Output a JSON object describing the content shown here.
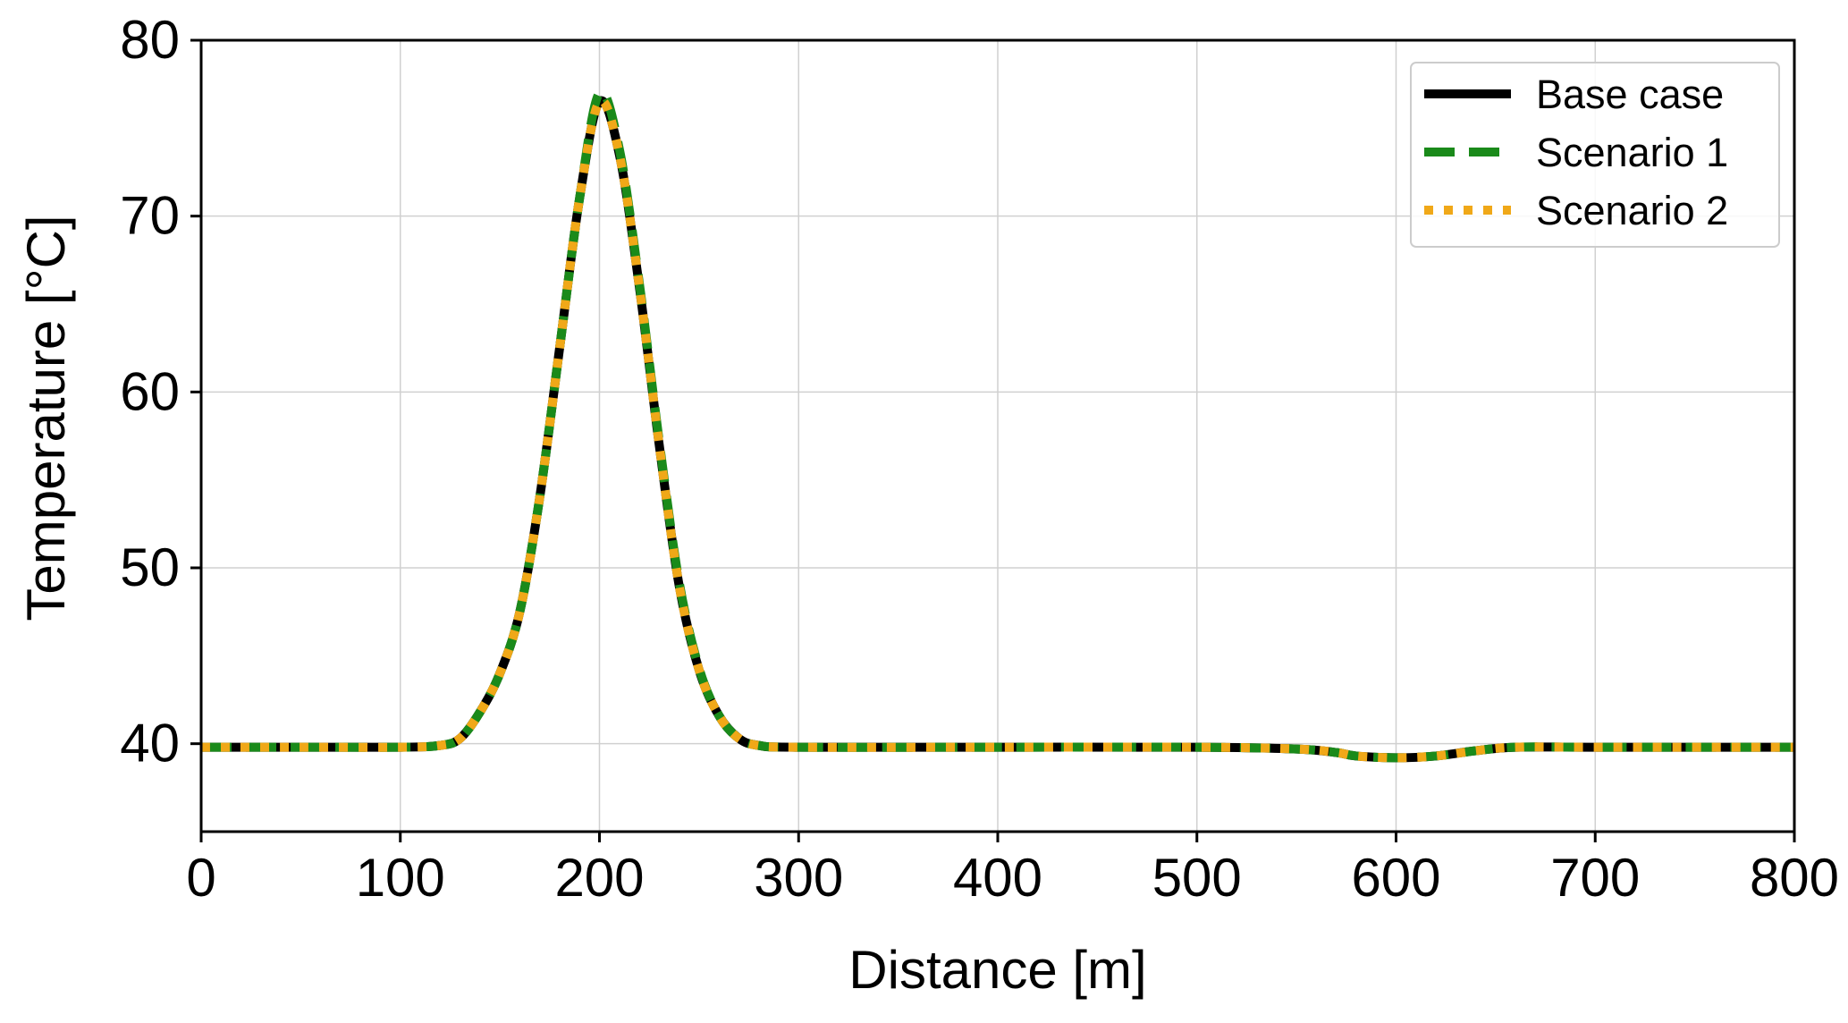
{
  "chart_data": {
    "type": "line",
    "title": "",
    "xlabel": "Distance [m]",
    "ylabel": "Temperature [°C]",
    "xlim": [
      0,
      800
    ],
    "ylim": [
      35,
      80
    ],
    "xticks": [
      0,
      100,
      200,
      300,
      400,
      500,
      600,
      700,
      800
    ],
    "yticks": [
      40,
      50,
      60,
      70,
      80
    ],
    "grid": true,
    "legend_position": "top-right",
    "x": [
      0,
      50,
      100,
      120,
      130,
      140,
      150,
      160,
      170,
      180,
      190,
      200,
      210,
      220,
      230,
      240,
      250,
      260,
      270,
      280,
      300,
      400,
      500,
      550,
      570,
      580,
      600,
      620,
      640,
      660,
      700,
      800
    ],
    "series": [
      {
        "name": "Base case",
        "color": "#000000",
        "style": "solid",
        "values": [
          39.8,
          39.8,
          39.8,
          39.9,
          40.3,
          41.8,
          44.0,
          47.5,
          54.0,
          62.5,
          71.0,
          76.5,
          73.5,
          66.0,
          57.0,
          49.0,
          44.2,
          41.6,
          40.3,
          39.9,
          39.8,
          39.8,
          39.8,
          39.7,
          39.5,
          39.3,
          39.2,
          39.3,
          39.6,
          39.8,
          39.8,
          39.8
        ]
      },
      {
        "name": "Scenario 1",
        "color": "#1a8a1a",
        "style": "dashed",
        "values": [
          39.8,
          39.8,
          39.8,
          39.9,
          40.3,
          41.8,
          44.0,
          47.5,
          54.0,
          62.5,
          71.0,
          77.0,
          73.8,
          66.2,
          57.2,
          49.2,
          44.3,
          41.6,
          40.3,
          39.9,
          39.8,
          39.8,
          39.8,
          39.7,
          39.5,
          39.3,
          39.2,
          39.3,
          39.6,
          39.8,
          39.8,
          39.8
        ]
      },
      {
        "name": "Scenario 2",
        "color": "#f0a818",
        "style": "dotted",
        "values": [
          39.8,
          39.8,
          39.8,
          39.9,
          40.3,
          41.8,
          44.0,
          47.5,
          54.0,
          62.5,
          71.0,
          76.5,
          73.5,
          66.0,
          57.0,
          49.0,
          44.2,
          41.6,
          40.3,
          39.9,
          39.8,
          39.8,
          39.8,
          39.7,
          39.5,
          39.3,
          39.2,
          39.3,
          39.6,
          39.8,
          39.8,
          39.8
        ]
      }
    ]
  }
}
